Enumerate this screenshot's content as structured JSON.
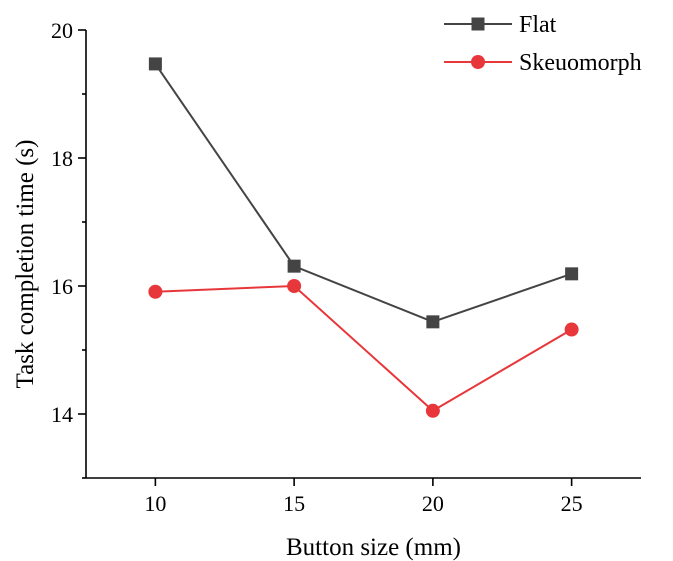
{
  "chart_data": {
    "type": "line",
    "title": "",
    "xlabel": "Button size (mm)",
    "ylabel": "Task completion time (s)",
    "x": [
      10,
      15,
      20,
      25
    ],
    "xlim": [
      7.5,
      27.5
    ],
    "ylim": [
      13,
      20
    ],
    "xticks": [
      10,
      15,
      20,
      25
    ],
    "yticks": [
      14,
      16,
      18,
      20
    ],
    "yticks_minor": [
      13,
      15,
      17,
      19
    ],
    "grid": false,
    "legend_position": "top-right",
    "series": [
      {
        "name": "Flat",
        "values": [
          19.47,
          16.31,
          15.44,
          16.19
        ],
        "color": "#444444",
        "marker": "square"
      },
      {
        "name": "Skeuomorph",
        "values": [
          15.91,
          16.0,
          14.05,
          15.32
        ],
        "color": "#e8373b",
        "marker": "circle"
      }
    ]
  }
}
